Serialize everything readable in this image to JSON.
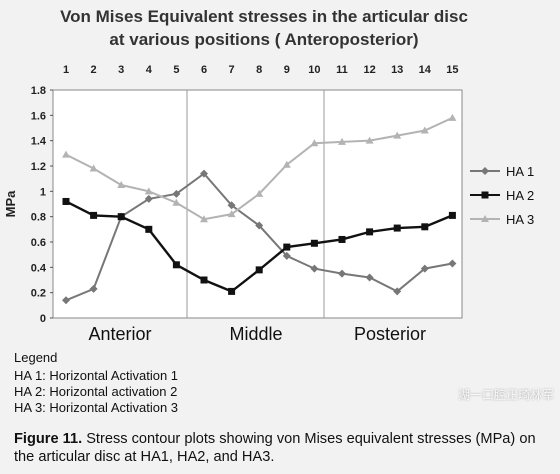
{
  "chart_data": {
    "type": "line",
    "title_line1": "Von Mises Equivalent stresses in the articular disc",
    "title_line2": "at various positions ( Anteroposterior)",
    "ylabel": "MPa",
    "xlabel": "",
    "x": [
      1,
      2,
      3,
      4,
      5,
      6,
      7,
      8,
      9,
      10,
      11,
      12,
      13,
      14,
      15
    ],
    "x_tick_labels": [
      "1",
      "2",
      "3",
      "4",
      "5",
      "6",
      "7",
      "8",
      "9",
      "10",
      "11",
      "12",
      "13",
      "14",
      "15"
    ],
    "y_tick_labels": [
      "0",
      "0.2",
      "0.4",
      "0.6",
      "0.8",
      "1",
      "1.2",
      "1.4",
      "1.6",
      "1.8"
    ],
    "ylim": [
      0,
      1.8
    ],
    "regions": [
      "Anterior",
      "Middle",
      "Posterior"
    ],
    "legend_position": "right",
    "series": [
      {
        "name": "HA 1",
        "color": "#777777",
        "marker": "diamond",
        "values": [
          0.14,
          0.23,
          0.8,
          0.94,
          0.98,
          1.14,
          0.89,
          0.73,
          0.49,
          0.39,
          0.35,
          0.32,
          0.21,
          0.39,
          0.43
        ]
      },
      {
        "name": "HA 2",
        "color": "#111111",
        "marker": "square",
        "values": [
          0.92,
          0.81,
          0.8,
          0.7,
          0.42,
          0.3,
          0.21,
          0.38,
          0.56,
          0.59,
          0.62,
          0.68,
          0.71,
          0.72,
          0.81
        ]
      },
      {
        "name": "HA 3",
        "color": "#b3b3b3",
        "marker": "triangle",
        "values": [
          1.29,
          1.18,
          1.05,
          1.0,
          0.91,
          0.78,
          0.82,
          0.98,
          1.21,
          1.38,
          1.39,
          1.4,
          1.44,
          1.48,
          1.58
        ]
      }
    ],
    "legend_notes": {
      "heading": "Legend",
      "items": [
        "HA 1: Horizontal Activation 1",
        "HA 2: Horizontal activation 2",
        "HA 3: Horizontal Activation 3"
      ]
    }
  },
  "caption": {
    "figure_label": "Figure 11.",
    "text": "Stress contour plots showing von Mises equivalent stresses (MPa) on the articular disc at HA1, HA2, and HA3."
  },
  "watermark": "湖一口腔正畸林军"
}
